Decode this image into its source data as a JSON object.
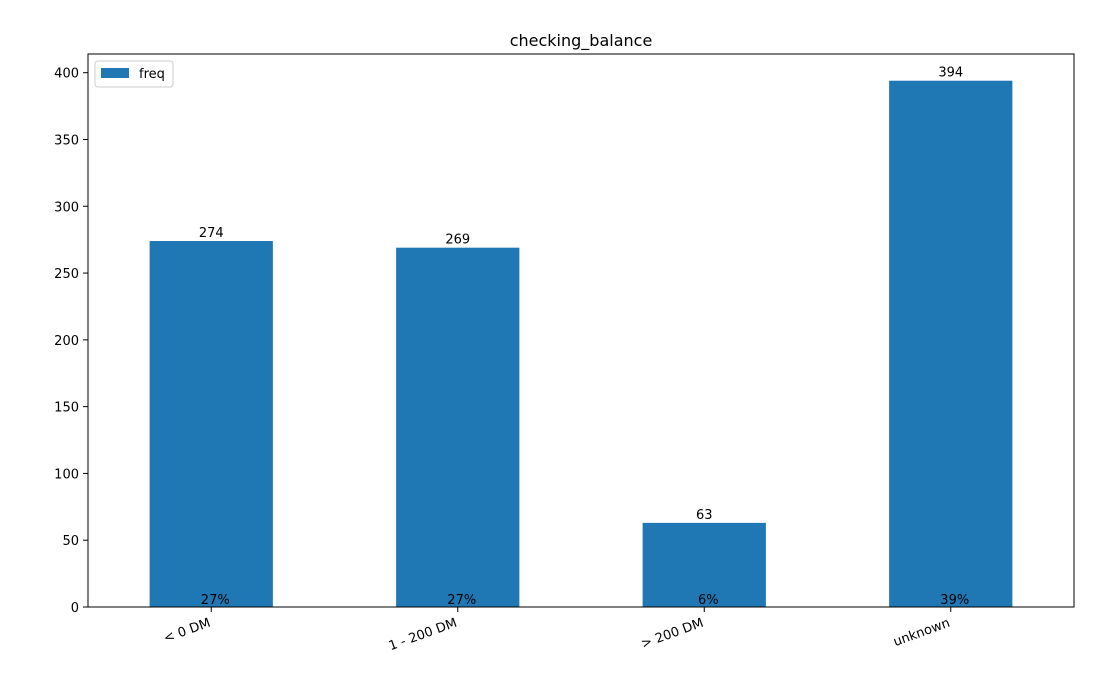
{
  "chart_data": {
    "type": "bar",
    "title": "checking_balance",
    "categories": [
      "< 0 DM",
      "1 - 200 DM",
      "> 200 DM",
      "unknown"
    ],
    "series": [
      {
        "name": "freq",
        "values": [
          274,
          269,
          63,
          394
        ],
        "color": "#1f77b4"
      }
    ],
    "value_labels": [
      "274",
      "269",
      "63",
      "394"
    ],
    "percent_labels": [
      "27%",
      "27%",
      "6%",
      "39%"
    ],
    "ylim": [
      0,
      414
    ],
    "yticks": [
      0,
      50,
      100,
      150,
      200,
      250,
      300,
      350,
      400
    ],
    "xlabel": "",
    "ylabel": "",
    "legend": {
      "position": "top-left",
      "label": "freq"
    },
    "grid": false
  }
}
